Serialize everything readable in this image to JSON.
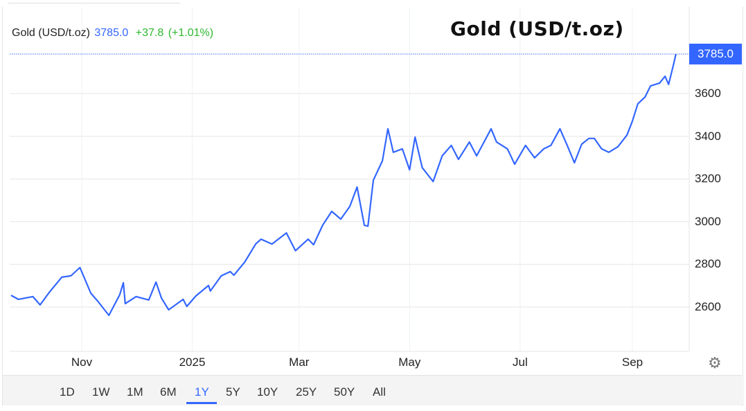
{
  "legend": {
    "name": "Gold (USD/t.oz)",
    "price": "3785.0",
    "change": "+37.8",
    "change_pct": "(+1.01%)"
  },
  "price_tag": "3785.0",
  "settings_icon": "gear-icon",
  "range_buttons": [
    {
      "label": "1D"
    },
    {
      "label": "1W"
    },
    {
      "label": "1M"
    },
    {
      "label": "6M"
    },
    {
      "label": "1Y",
      "active": true
    },
    {
      "label": "5Y"
    },
    {
      "label": "10Y"
    },
    {
      "label": "25Y"
    },
    {
      "label": "50Y"
    },
    {
      "label": "All"
    }
  ],
  "colors": {
    "line": "#3366ff",
    "up": "#2eb82e",
    "accent": "#3366ff",
    "grid": "#e6e6e6"
  },
  "chart_data": {
    "type": "line",
    "title": "Gold (USD/t.oz)",
    "xlabel": "",
    "ylabel": "",
    "ylim": [
      2420,
      3880
    ],
    "yticks": [
      2600,
      2800,
      3000,
      3200,
      3400,
      3600
    ],
    "ytick_labels": [
      "2600",
      "2800",
      "3000",
      "3200",
      "3400",
      "3600"
    ],
    "xticks": [
      "2024-11-01",
      "2025-01-01",
      "2025-03-01",
      "2025-05-01",
      "2025-07-01",
      "2025-09-01"
    ],
    "xtick_labels": [
      "Nov",
      "2025",
      "Mar",
      "May",
      "Jul",
      "Sep"
    ],
    "xlim": [
      "2024-09-23",
      "2025-09-30"
    ],
    "grid": true,
    "last_value": 3785.0,
    "series": [
      {
        "x": [
          "2024-09-23",
          "2024-09-27",
          "2024-10-05",
          "2024-10-09",
          "2024-10-14",
          "2024-10-21",
          "2024-10-26",
          "2024-10-31",
          "2024-11-06",
          "2024-11-10",
          "2024-11-16",
          "2024-11-22",
          "2024-11-24",
          "2024-11-25",
          "2024-12-01",
          "2024-12-08",
          "2024-12-12",
          "2024-12-15",
          "2024-12-19",
          "2024-12-27",
          "2024-12-29",
          "2025-01-03",
          "2025-01-10",
          "2025-01-11",
          "2025-01-17",
          "2025-01-22",
          "2025-01-24",
          "2025-01-30",
          "2025-02-05",
          "2025-02-08",
          "2025-02-14",
          "2025-02-22",
          "2025-02-27",
          "2025-03-06",
          "2025-03-09",
          "2025-03-14",
          "2025-03-19",
          "2025-03-24",
          "2025-03-29",
          "2025-04-02",
          "2025-04-06",
          "2025-04-08",
          "2025-04-11",
          "2025-04-16",
          "2025-04-19",
          "2025-04-22",
          "2025-04-27",
          "2025-05-01",
          "2025-05-04",
          "2025-05-08",
          "2025-05-14",
          "2025-05-19",
          "2025-05-24",
          "2025-05-28",
          "2025-06-03",
          "2025-06-07",
          "2025-06-15",
          "2025-06-18",
          "2025-06-24",
          "2025-06-28",
          "2025-07-04",
          "2025-07-09",
          "2025-07-14",
          "2025-07-18",
          "2025-07-23",
          "2025-07-27",
          "2025-07-31",
          "2025-08-04",
          "2025-08-08",
          "2025-08-11",
          "2025-08-15",
          "2025-08-19",
          "2025-08-24",
          "2025-08-29",
          "2025-09-01",
          "2025-09-04",
          "2025-09-08",
          "2025-09-11",
          "2025-09-16",
          "2025-09-19",
          "2025-09-21",
          "2025-09-24",
          "2025-09-25"
        ],
        "y": [
          2655,
          2636,
          2649,
          2610,
          2668,
          2740,
          2746,
          2785,
          2665,
          2626,
          2561,
          2658,
          2714,
          2616,
          2649,
          2633,
          2717,
          2642,
          2587,
          2636,
          2603,
          2652,
          2701,
          2675,
          2746,
          2766,
          2749,
          2811,
          2895,
          2918,
          2895,
          2947,
          2864,
          2918,
          2892,
          2983,
          3048,
          3012,
          3071,
          3162,
          2983,
          2979,
          3194,
          3285,
          3435,
          3325,
          3341,
          3243,
          3396,
          3253,
          3188,
          3308,
          3357,
          3292,
          3373,
          3308,
          3435,
          3373,
          3341,
          3269,
          3357,
          3299,
          3341,
          3357,
          3435,
          3357,
          3276,
          3363,
          3390,
          3390,
          3341,
          3325,
          3351,
          3406,
          3471,
          3552,
          3584,
          3636,
          3649,
          3681,
          3643,
          3746,
          3785
        ]
      }
    ]
  }
}
